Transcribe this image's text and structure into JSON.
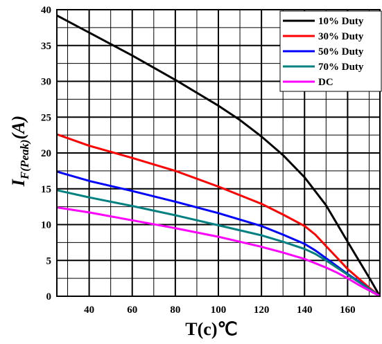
{
  "chart_data": {
    "type": "line",
    "xlabel": "T(c)℃",
    "ylabel_main": "I",
    "ylabel_sub": "F(Peak)",
    "ylabel_unit": "(A)",
    "xlim": [
      25,
      175
    ],
    "ylim": [
      0,
      40
    ],
    "x_ticks": [
      40,
      60,
      80,
      100,
      120,
      140,
      160
    ],
    "y_ticks": [
      0,
      5,
      10,
      15,
      20,
      25,
      30,
      35,
      40
    ],
    "grid": true,
    "legend_position": "top-right",
    "series": [
      {
        "name": "10% Duty",
        "color": "#000000",
        "x": [
          25,
          40,
          60,
          80,
          100,
          110,
          120,
          130,
          140,
          150,
          160,
          170,
          175
        ],
        "y": [
          39.2,
          36.8,
          33.6,
          30.2,
          26.6,
          24.6,
          22.3,
          19.7,
          16.6,
          12.7,
          7.6,
          2.6,
          0
        ]
      },
      {
        "name": "30% Duty",
        "color": "#ff0000",
        "x": [
          25,
          40,
          60,
          80,
          100,
          120,
          130,
          140,
          145,
          150,
          155,
          160,
          165,
          170,
          175
        ],
        "y": [
          22.6,
          21.0,
          19.3,
          17.5,
          15.3,
          12.9,
          11.4,
          9.8,
          8.6,
          7.0,
          5.4,
          3.8,
          2.5,
          1.2,
          0
        ]
      },
      {
        "name": "50% Duty",
        "color": "#0000ff",
        "x": [
          25,
          40,
          60,
          80,
          100,
          120,
          130,
          140,
          145,
          150,
          155,
          160,
          165,
          170,
          175
        ],
        "y": [
          17.4,
          16.1,
          14.7,
          13.2,
          11.6,
          9.8,
          8.6,
          7.3,
          6.4,
          5.3,
          4.2,
          3.1,
          2.1,
          1.0,
          0
        ]
      },
      {
        "name": "70% Duty",
        "color": "#008080",
        "x": [
          25,
          40,
          60,
          80,
          100,
          120,
          130,
          140,
          145,
          150,
          155,
          160,
          165,
          170,
          175
        ],
        "y": [
          14.8,
          13.8,
          12.6,
          11.3,
          9.9,
          8.5,
          7.6,
          6.6,
          5.9,
          5.0,
          4.0,
          3.0,
          2.0,
          1.0,
          0
        ]
      },
      {
        "name": "DC",
        "color": "#ff00ff",
        "x": [
          25,
          40,
          60,
          80,
          100,
          120,
          130,
          140,
          145,
          150,
          155,
          160,
          165,
          170,
          175
        ],
        "y": [
          12.4,
          11.7,
          10.6,
          9.5,
          8.3,
          6.9,
          6.1,
          5.2,
          4.6,
          4.0,
          3.3,
          2.5,
          1.6,
          0.8,
          0
        ]
      }
    ]
  }
}
